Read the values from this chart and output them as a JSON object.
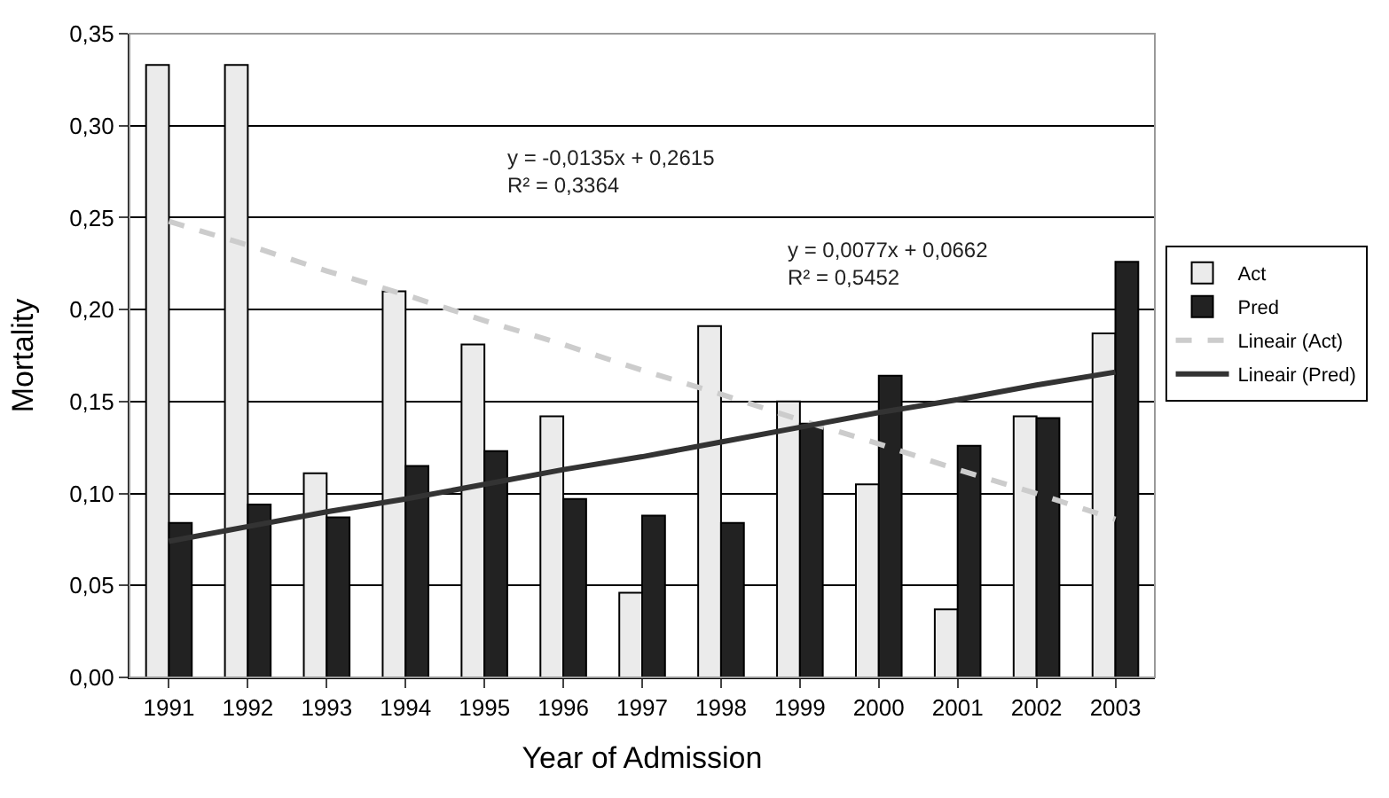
{
  "chart_data": {
    "type": "bar",
    "xlabel": "Year of Admission",
    "ylabel": "Mortality",
    "categories": [
      "1991",
      "1992",
      "1993",
      "1994",
      "1995",
      "1996",
      "1997",
      "1998",
      "1999",
      "2000",
      "2001",
      "2002",
      "2003"
    ],
    "series": [
      {
        "name": "Act",
        "color": "#ebebeb",
        "values": [
          0.333,
          0.333,
          0.111,
          0.21,
          0.181,
          0.142,
          0.046,
          0.191,
          0.15,
          0.105,
          0.037,
          0.142,
          0.187
        ]
      },
      {
        "name": "Pred",
        "color": "#222222",
        "values": [
          0.084,
          0.094,
          0.087,
          0.115,
          0.123,
          0.097,
          0.088,
          0.084,
          0.138,
          0.164,
          0.126,
          0.141,
          0.226
        ]
      },
      {
        "name": "Lineair (Act)",
        "type": "line",
        "color": "#cccccc",
        "line_style": "dashed",
        "values": [
          0.248,
          0.235,
          0.221,
          0.208,
          0.194,
          0.181,
          0.167,
          0.154,
          0.14,
          0.127,
          0.113,
          0.1,
          0.086
        ]
      },
      {
        "name": "Lineair (Pred)",
        "type": "line",
        "color": "#333333",
        "line_style": "solid",
        "values": [
          0.074,
          0.082,
          0.09,
          0.097,
          0.105,
          0.113,
          0.12,
          0.128,
          0.136,
          0.144,
          0.151,
          0.159,
          0.166
        ]
      }
    ],
    "ylim": [
      0,
      0.35
    ],
    "yticks": [
      {
        "value": 0,
        "label": "0,00"
      },
      {
        "value": 0.05,
        "label": "0,05"
      },
      {
        "value": 0.1,
        "label": "0,10"
      },
      {
        "value": 0.15,
        "label": "0,15"
      },
      {
        "value": 0.2,
        "label": "0,20"
      },
      {
        "value": 0.25,
        "label": "0,25"
      },
      {
        "value": 0.3,
        "label": "0,30"
      },
      {
        "value": 0.35,
        "label": "0,35"
      }
    ],
    "grid": "y",
    "legend": "right",
    "marker": "none",
    "annotations": [
      "y = 0,0077x + 0,0662\nR² = 0,5452",
      "y = -0,0135x + 0,2615\nR² = 0,3364"
    ]
  }
}
